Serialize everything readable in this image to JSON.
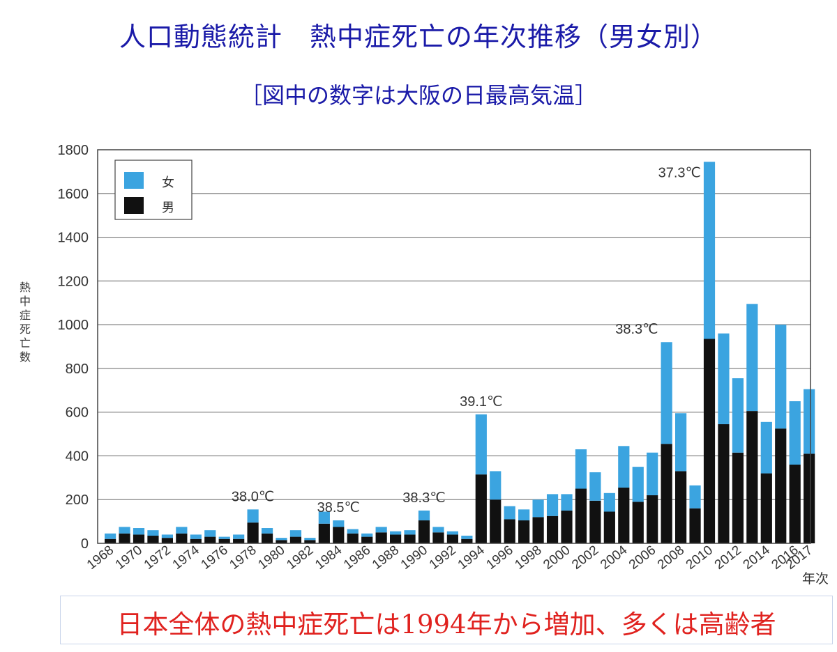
{
  "title": "人口動態統計　熱中症死亡の年次推移（男女別）",
  "subtitle": "［図中の数字は大阪の日最高気温］",
  "footer": "日本全体の熱中症死亡は1994年から増加、多くは高齢者",
  "colors": {
    "female": "#3ba4e0",
    "male": "#111111",
    "title": "#1a1aa8",
    "footer": "#e0221f"
  },
  "chart_data": {
    "type": "bar",
    "stacked": true,
    "ylabel": "熱中症死亡数",
    "xlabel": "年次",
    "ylim": [
      0,
      1800
    ],
    "yticks": [
      0,
      200,
      400,
      600,
      800,
      1000,
      1200,
      1400,
      1600,
      1800
    ],
    "grid": true,
    "legend_position": "top-left",
    "legend": [
      "女",
      "男"
    ],
    "categories": [
      1968,
      1969,
      1970,
      1971,
      1972,
      1973,
      1974,
      1975,
      1976,
      1977,
      1978,
      1979,
      1980,
      1981,
      1982,
      1983,
      1984,
      1985,
      1986,
      1987,
      1988,
      1989,
      1990,
      1991,
      1992,
      1993,
      1994,
      1995,
      1996,
      1997,
      1998,
      1999,
      2000,
      2001,
      2002,
      2003,
      2004,
      2005,
      2006,
      2007,
      2008,
      2009,
      2010,
      2011,
      2012,
      2013,
      2014,
      2015,
      2016,
      2017
    ],
    "xtick_labels": [
      "1968",
      "1970",
      "1972",
      "1974",
      "1976",
      "1978",
      "1980",
      "1982",
      "1984",
      "1986",
      "1988",
      "1990",
      "1992",
      "1994",
      "1996",
      "1998",
      "2000",
      "2002",
      "2004",
      "2006",
      "2008",
      "2010",
      "2012",
      "2014",
      "2016",
      "2017"
    ],
    "series": [
      {
        "name": "男",
        "values": [
          20,
          45,
          40,
          35,
          25,
          45,
          20,
          30,
          20,
          20,
          95,
          45,
          15,
          30,
          15,
          90,
          75,
          45,
          30,
          50,
          40,
          40,
          105,
          50,
          40,
          20,
          315,
          200,
          110,
          105,
          120,
          125,
          150,
          250,
          195,
          145,
          255,
          190,
          220,
          455,
          330,
          160,
          935,
          545,
          415,
          605,
          320,
          525,
          360,
          410
        ]
      },
      {
        "name": "女",
        "values": [
          25,
          30,
          30,
          25,
          15,
          30,
          20,
          30,
          10,
          20,
          60,
          25,
          10,
          30,
          10,
          55,
          30,
          20,
          15,
          25,
          15,
          20,
          45,
          25,
          15,
          15,
          275,
          130,
          60,
          50,
          80,
          100,
          75,
          180,
          130,
          85,
          190,
          160,
          195,
          465,
          265,
          105,
          810,
          415,
          340,
          490,
          235,
          475,
          290,
          295
        ]
      }
    ],
    "annotations": [
      {
        "year": 1978,
        "text": "38.0℃"
      },
      {
        "year": 1984,
        "text": "38.5℃"
      },
      {
        "year": 1990,
        "text": "38.3℃"
      },
      {
        "year": 1994,
        "text": "39.1℃"
      },
      {
        "year": 2007,
        "text": "38.3℃"
      },
      {
        "year": 2010,
        "text": "37.3℃"
      }
    ]
  }
}
